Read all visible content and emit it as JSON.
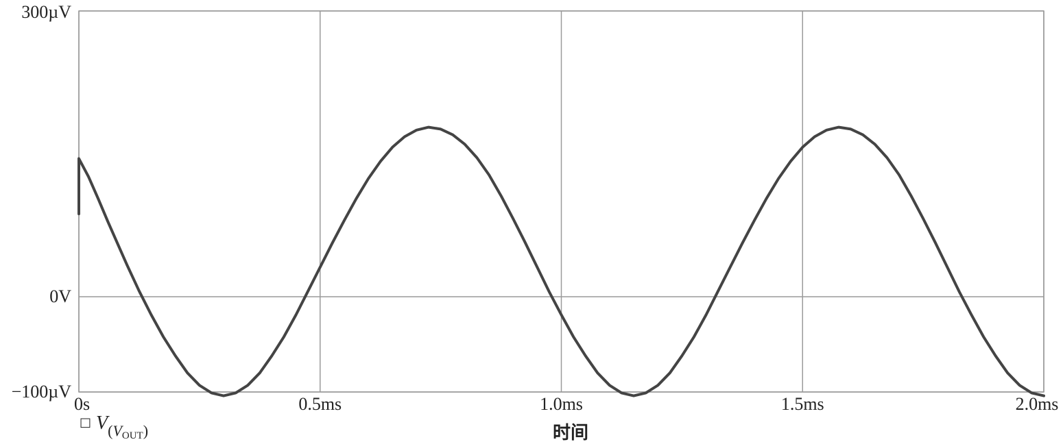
{
  "chart_data": {
    "type": "line",
    "xlabel": "时间",
    "ylabel": "",
    "xlim": [
      0,
      2.0
    ],
    "ylim": [
      -100,
      300
    ],
    "x_unit": "ms",
    "y_unit": "µV",
    "grid": true,
    "x_ticks": [
      {
        "value": 0,
        "label": "0s"
      },
      {
        "value": 0.5,
        "label": "0.5ms"
      },
      {
        "value": 1.0,
        "label": "1.0ms"
      },
      {
        "value": 1.5,
        "label": "1.5ms"
      },
      {
        "value": 2.0,
        "label": "2.0ms"
      }
    ],
    "y_ticks": [
      {
        "value": -100,
        "label": "−100µV"
      },
      {
        "value": 0,
        "label": "0V"
      },
      {
        "value": 300,
        "label": "300µV"
      }
    ],
    "legend": {
      "placement": "bottom-left",
      "symbol": "□",
      "main": "V",
      "sub_open": "(",
      "sub_v": "V",
      "sub_name": "OUT",
      "sub_close": ")"
    },
    "series": [
      {
        "color": "#444444",
        "x": [
          0,
          0,
          0.02,
          0.04,
          0.06,
          0.08,
          0.1,
          0.125,
          0.15,
          0.175,
          0.2,
          0.225,
          0.25,
          0.275,
          0.3,
          0.325,
          0.35,
          0.375,
          0.4,
          0.425,
          0.45,
          0.475,
          0.5,
          0.525,
          0.55,
          0.575,
          0.6,
          0.625,
          0.65,
          0.675,
          0.7,
          0.725,
          0.75,
          0.775,
          0.8,
          0.825,
          0.85,
          0.875,
          0.9,
          0.925,
          0.95,
          0.975,
          1.0,
          1.025,
          1.05,
          1.075,
          1.1,
          1.125,
          1.15,
          1.175,
          1.2,
          1.225,
          1.25,
          1.275,
          1.3,
          1.325,
          1.35,
          1.375,
          1.4,
          1.425,
          1.45,
          1.475,
          1.5,
          1.525,
          1.55,
          1.575,
          1.6,
          1.625,
          1.65,
          1.675,
          1.7,
          1.725,
          1.75,
          1.775,
          1.8,
          1.825,
          1.85,
          1.875,
          1.9,
          1.925,
          1.95,
          1.975,
          2.0
        ],
        "y": [
          87,
          145,
          126,
          103,
          79,
          56,
          33,
          6,
          -19,
          -42,
          -62,
          -80,
          -93,
          -101,
          -104,
          -101,
          -93,
          -80,
          -62,
          -42,
          -19,
          6,
          31,
          56,
          80,
          103,
          124,
          142,
          157,
          168,
          175,
          178,
          176,
          170,
          160,
          146,
          128,
          106,
          82,
          57,
          31,
          5,
          -19,
          -42,
          -62,
          -80,
          -93,
          -101,
          -104,
          -101,
          -93,
          -80,
          -62,
          -42,
          -19,
          6,
          31,
          56,
          80,
          103,
          124,
          142,
          157,
          168,
          175,
          178,
          176,
          170,
          160,
          146,
          128,
          106,
          82,
          57,
          31,
          5,
          -19,
          -42,
          -62,
          -80,
          -93,
          -101,
          -104
        ]
      }
    ]
  }
}
